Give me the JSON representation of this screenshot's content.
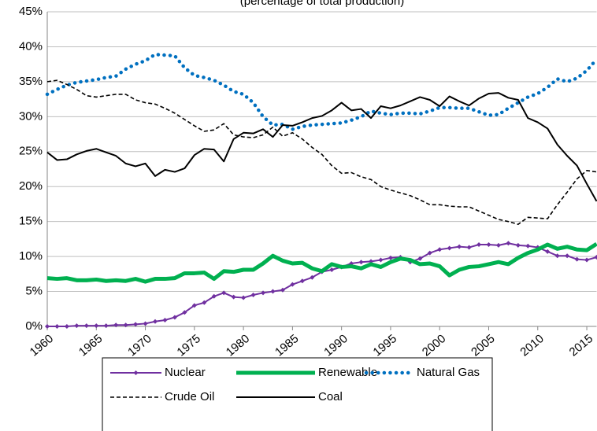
{
  "chart_data": {
    "type": "line",
    "subtitle": "(percentage of total production)",
    "x": [
      1960,
      1961,
      1962,
      1963,
      1964,
      1965,
      1966,
      1967,
      1968,
      1969,
      1970,
      1971,
      1972,
      1973,
      1974,
      1975,
      1976,
      1977,
      1978,
      1979,
      1980,
      1981,
      1982,
      1983,
      1984,
      1985,
      1986,
      1987,
      1988,
      1989,
      1990,
      1991,
      1992,
      1993,
      1994,
      1995,
      1996,
      1997,
      1998,
      1999,
      2000,
      2001,
      2002,
      2003,
      2004,
      2005,
      2006,
      2007,
      2008,
      2009,
      2010,
      2011,
      2012,
      2013,
      2014,
      2015,
      2016
    ],
    "xlim": [
      1960,
      2016
    ],
    "xticks": [
      1960,
      1965,
      1970,
      1975,
      1980,
      1985,
      1990,
      1995,
      2000,
      2005,
      2010,
      2015
    ],
    "ylim": [
      0,
      45
    ],
    "yticks": [
      {
        "value": 0,
        "label": "0%"
      },
      {
        "value": 5,
        "label": "5%"
      },
      {
        "value": 10,
        "label": "10%"
      },
      {
        "value": 15,
        "label": "15%"
      },
      {
        "value": 20,
        "label": "20%"
      },
      {
        "value": 25,
        "label": "25%"
      },
      {
        "value": 30,
        "label": "30%"
      },
      {
        "value": 35,
        "label": "35%"
      },
      {
        "value": 40,
        "label": "40%"
      },
      {
        "value": 45,
        "label": "45%"
      }
    ],
    "grid": true,
    "legend": "bottom",
    "series": [
      {
        "name": "Nuclear",
        "color": "#7030a0",
        "line_style": "solid",
        "marker": "diamond",
        "values": [
          0,
          0,
          0,
          0.1,
          0.1,
          0.1,
          0.1,
          0.2,
          0.2,
          0.3,
          0.4,
          0.7,
          0.9,
          1.3,
          2.0,
          3.0,
          3.4,
          4.3,
          4.8,
          4.2,
          4.1,
          4.5,
          4.8,
          5.0,
          5.2,
          6.0,
          6.5,
          7.0,
          7.8,
          8.1,
          8.5,
          9.0,
          9.2,
          9.3,
          9.5,
          9.8,
          9.9,
          9.2,
          9.7,
          10.5,
          11.0,
          11.2,
          11.4,
          11.3,
          11.7,
          11.7,
          11.6,
          11.9,
          11.6,
          11.5,
          11.3,
          10.7,
          10.1,
          10.1,
          9.6,
          9.5,
          9.9
        ]
      },
      {
        "name": "Renewable",
        "color": "#00b050",
        "line_style": "thick",
        "values": [
          6.9,
          6.8,
          6.9,
          6.6,
          6.6,
          6.7,
          6.5,
          6.6,
          6.5,
          6.8,
          6.4,
          6.8,
          6.8,
          6.9,
          7.6,
          7.6,
          7.7,
          6.8,
          7.9,
          7.8,
          8.1,
          8.1,
          9.0,
          10.1,
          9.4,
          9.0,
          9.1,
          8.3,
          7.9,
          8.9,
          8.5,
          8.6,
          8.3,
          8.9,
          8.5,
          9.2,
          9.7,
          9.5,
          8.9,
          9.0,
          8.6,
          7.3,
          8.1,
          8.5,
          8.6,
          8.9,
          9.2,
          8.9,
          9.8,
          10.5,
          11.0,
          11.7,
          11.1,
          11.4,
          11.0,
          10.9,
          11.8
        ]
      },
      {
        "name": "Natural Gas",
        "color": "#0070c0",
        "line_style": "dotted",
        "values": [
          33.2,
          33.9,
          34.5,
          34.9,
          35.1,
          35.3,
          35.6,
          35.8,
          36.8,
          37.5,
          38.0,
          38.9,
          38.8,
          38.7,
          37.0,
          35.9,
          35.6,
          35.2,
          34.5,
          33.6,
          33.2,
          32.0,
          30.0,
          28.8,
          28.9,
          28.2,
          28.6,
          28.8,
          28.9,
          29.0,
          29.1,
          29.5,
          30.0,
          30.8,
          30.5,
          30.3,
          30.5,
          30.5,
          30.4,
          30.8,
          31.3,
          31.3,
          31.2,
          31.2,
          30.7,
          30.2,
          30.3,
          31.2,
          32.0,
          32.8,
          33.3,
          34.2,
          35.4,
          35.0,
          35.5,
          36.6,
          38.2
        ]
      },
      {
        "name": "Crude Oil",
        "color": "#000000",
        "line_style": "dashed",
        "values": [
          35.0,
          35.2,
          34.6,
          33.9,
          33.0,
          32.8,
          33.0,
          33.2,
          33.2,
          32.4,
          32.0,
          31.8,
          31.2,
          30.5,
          29.6,
          28.7,
          27.9,
          28.1,
          29.0,
          27.4,
          27.1,
          27.0,
          27.4,
          28.5,
          27.2,
          27.7,
          26.8,
          25.6,
          24.6,
          23.0,
          21.9,
          22.0,
          21.4,
          21.0,
          20.0,
          19.5,
          19.1,
          18.7,
          18.1,
          17.4,
          17.4,
          17.2,
          17.1,
          17.1,
          16.5,
          15.9,
          15.3,
          15.0,
          14.6,
          15.6,
          15.5,
          15.4,
          17.4,
          19.2,
          21.1,
          22.3,
          22.1
        ]
      },
      {
        "name": "Coal",
        "color": "#000000",
        "line_style": "solid",
        "values": [
          24.9,
          23.8,
          23.9,
          24.6,
          25.1,
          25.4,
          24.9,
          24.4,
          23.3,
          22.9,
          23.3,
          21.5,
          22.4,
          22.1,
          22.6,
          24.5,
          25.4,
          25.3,
          23.6,
          26.8,
          27.7,
          27.6,
          28.2,
          27.1,
          28.8,
          28.7,
          29.2,
          29.8,
          30.1,
          30.9,
          32.0,
          30.9,
          31.1,
          29.8,
          31.5,
          31.2,
          31.6,
          32.2,
          32.8,
          32.4,
          31.5,
          32.9,
          32.2,
          31.6,
          32.6,
          33.3,
          33.4,
          32.7,
          32.4,
          29.8,
          29.2,
          28.3,
          26.0,
          24.4,
          23.0,
          20.4,
          17.9
        ]
      }
    ]
  }
}
